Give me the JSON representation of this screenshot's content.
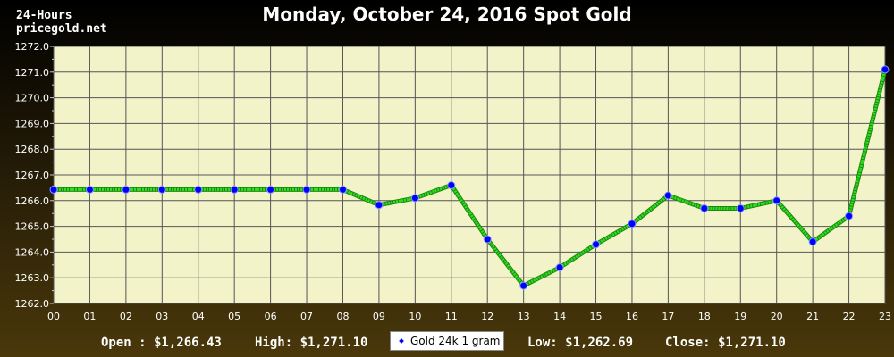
{
  "header": {
    "title": "Monday, October 24, 2016 Spot Gold",
    "period": "24-Hours",
    "site": "pricegold.net"
  },
  "footer": {
    "open": "Open : $1,266.43",
    "high": "High: $1,271.10",
    "low": "Low: $1,262.69",
    "close": "Close: $1,271.10"
  },
  "legend": {
    "label": "Gold 24k 1 gram"
  },
  "colors": {
    "line": "#33dd22",
    "marker": "#0000ff",
    "plot_bg": "#f3f3c9",
    "grid": "#555555"
  },
  "chart_data": {
    "type": "line",
    "title": "Monday, October 24, 2016 Spot Gold",
    "categories": [
      "00",
      "01",
      "02",
      "03",
      "04",
      "05",
      "06",
      "07",
      "08",
      "09",
      "10",
      "11",
      "12",
      "13",
      "14",
      "15",
      "16",
      "17",
      "18",
      "19",
      "20",
      "21",
      "22",
      "23"
    ],
    "series": [
      {
        "name": "Gold 24k 1 gram",
        "values": [
          1266.43,
          1266.43,
          1266.43,
          1266.43,
          1266.43,
          1266.43,
          1266.43,
          1266.43,
          1266.43,
          1265.83,
          1266.1,
          1266.6,
          1264.5,
          1262.69,
          1263.4,
          1264.3,
          1265.1,
          1266.2,
          1265.7,
          1265.7,
          1266.0,
          1264.4,
          1265.4,
          1271.1
        ]
      }
    ],
    "ylim": [
      1262.0,
      1272.0
    ],
    "yticks": [
      "1262.0",
      "1263.0",
      "1264.0",
      "1265.0",
      "1266.0",
      "1267.0",
      "1268.0",
      "1269.0",
      "1270.0",
      "1271.0",
      "1272.0"
    ],
    "grid": true,
    "legend_position": "bottom-center"
  }
}
